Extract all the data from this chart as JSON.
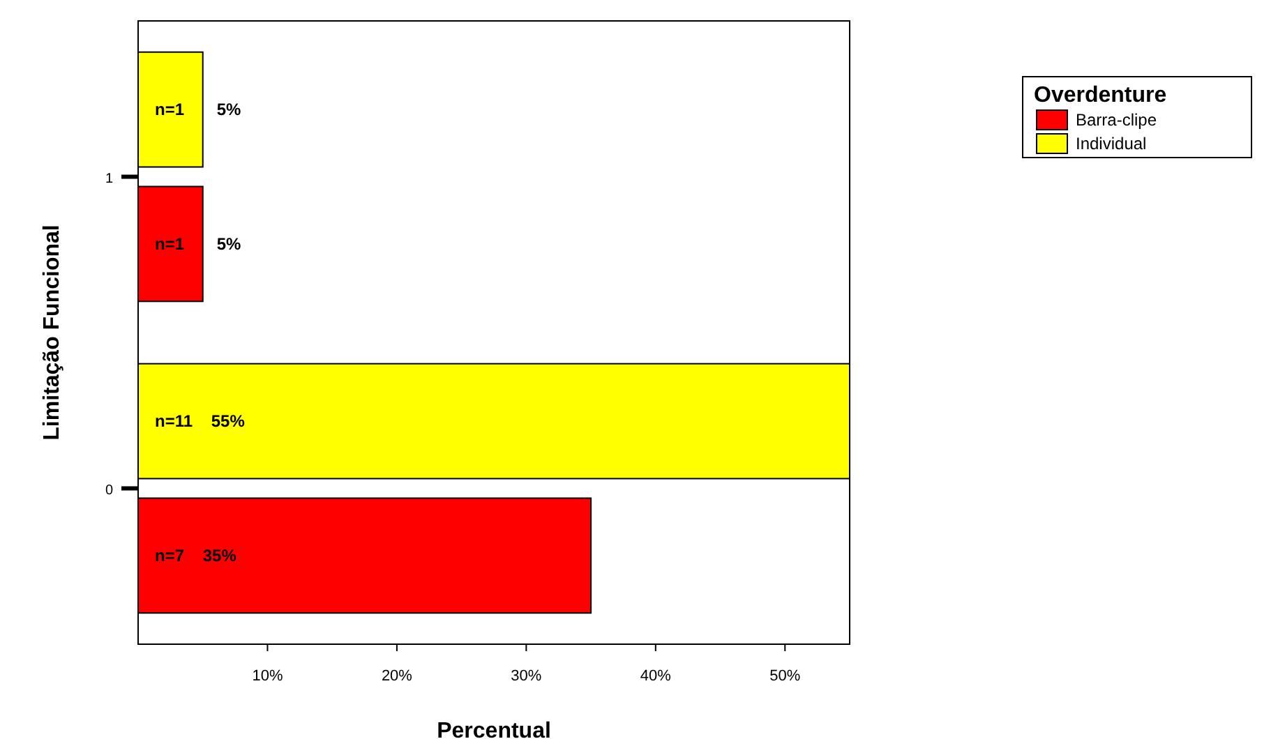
{
  "chart_data": {
    "type": "bar",
    "orientation": "horizontal",
    "xlabel": "Percentual",
    "ylabel": "Limitação Funcional",
    "legend_title": "Overdenture",
    "legend": "top right",
    "categories": [
      "1",
      "0"
    ],
    "series": [
      {
        "name": "Barra-clipe",
        "color": "#ff0000",
        "values": [
          5,
          35
        ],
        "value_labels": [
          "n=1       5%",
          "n=7    35%"
        ]
      },
      {
        "name": "Individual",
        "color": "#ffff00",
        "values": [
          5,
          55
        ],
        "value_labels": [
          "n=1       5%",
          "n=11    55%"
        ]
      }
    ],
    "xlim": [
      0,
      55
    ],
    "xticks": [
      {
        "value": 10,
        "label": "10%"
      },
      {
        "value": 20,
        "label": "20%"
      },
      {
        "value": 30,
        "label": "30%"
      },
      {
        "value": 40,
        "label": "40%"
      },
      {
        "value": 50,
        "label": "50%"
      }
    ]
  }
}
